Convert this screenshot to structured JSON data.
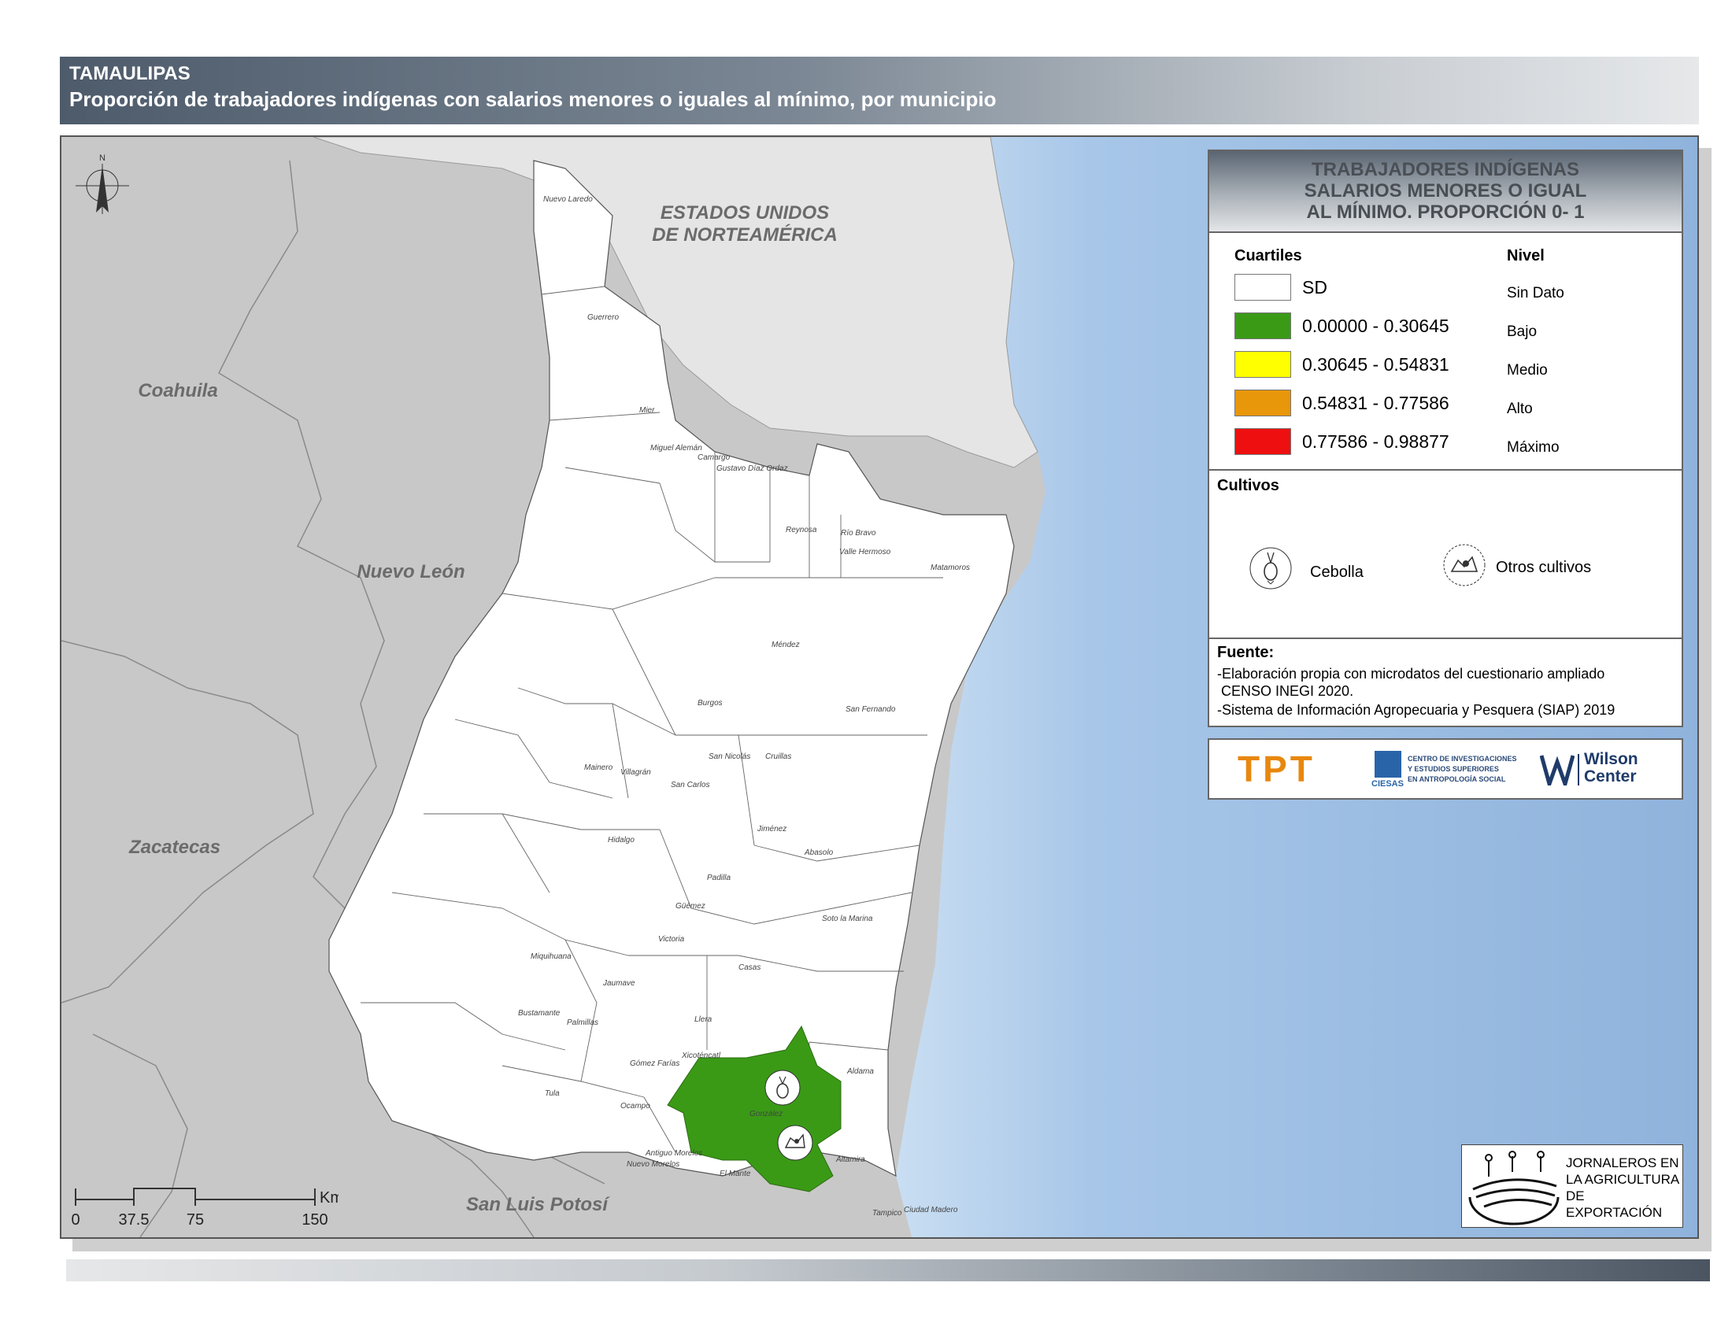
{
  "header": {
    "state": "TAMAULIPAS",
    "subtitle": "Proporción de trabajadores indígenas con salarios menores o iguales al mínimo, por municipio"
  },
  "map": {
    "regions": {
      "usa": "ESTADOS UNIDOS\nDE NORTEAMÉRICA",
      "usa_line1": "ESTADOS UNIDOS",
      "usa_line2": "DE NORTEAMÉRICA",
      "coahuila": "Coahuila",
      "nuevo_leon": "Nuevo León",
      "zacatecas": "Zacatecas",
      "san_luis_potosi": "San Luis Potosí"
    },
    "municipalities": [
      "Nuevo Laredo",
      "Guerrero",
      "Mier",
      "Miguel Alemán",
      "Camargo",
      "Gustavo Díaz Ordaz",
      "Reynosa",
      "Río Bravo",
      "Valle Hermoso",
      "Matamoros",
      "Méndez",
      "San Fernando",
      "Burgos",
      "Mainero",
      "Villagrán",
      "San Nicolás",
      "Cruillas",
      "San Carlos",
      "Hidalgo",
      "Jiménez",
      "Padilla",
      "Abasolo",
      "Güémez",
      "Soto la Marina",
      "Victoria",
      "Miquihuana",
      "Casas",
      "Jaumave",
      "Bustamante",
      "Palmillas",
      "Llera",
      "Xicoténcatl",
      "Gómez Farías",
      "Tula",
      "Ocampo",
      "Aldama",
      "González",
      "Antiguo Morelos",
      "Nuevo Morelos",
      "El Mante",
      "Altamira",
      "Tampico",
      "Ciudad Madero"
    ],
    "highlighted_municipality": "González",
    "highlight_color": "#3a9a16",
    "north_label": "N",
    "scale": {
      "ticks": [
        "0",
        "37.5",
        "75",
        "150"
      ],
      "unit": "Km"
    }
  },
  "legend": {
    "title_lines": [
      "TRABAJADORES INDÍGENAS",
      "SALARIOS MENORES O IGUAL",
      "AL MÍNIMO. PROPORCIÓN 0- 1"
    ],
    "col_cuartiles": "Cuartiles",
    "col_nivel": "Nivel",
    "classes": [
      {
        "range": "SD",
        "nivel": "Sin Dato",
        "color": "#ffffff"
      },
      {
        "range": "0.00000 - 0.30645",
        "nivel": "Bajo",
        "color": "#3a9a16"
      },
      {
        "range": "0.30645 - 0.54831",
        "nivel": "Medio",
        "color": "#ffff00"
      },
      {
        "range": "0.54831 - 0.77586",
        "nivel": "Alto",
        "color": "#e8960a"
      },
      {
        "range": "0.77586 - 0.98877",
        "nivel": "Máximo",
        "color": "#ee1010"
      }
    ],
    "cultivos_title": "Cultivos",
    "cultivos": [
      {
        "label": "Cebolla",
        "icon": "onion-icon"
      },
      {
        "label": "Otros cultivos",
        "icon": "other-crops-icon"
      }
    ],
    "fuente_title": "Fuente:",
    "fuente_lines": [
      "-Elaboración propia con microdatos del cuestionario ampliado",
      " CENSO INEGI 2020.",
      "-Sistema de Información Agropecuaria y Pesquera (SIAP) 2019"
    ]
  },
  "logos": {
    "tpt": "TPT",
    "ciesas_lines": [
      "CENTRO DE INVESTIGACIONES",
      "Y ESTUDIOS SUPERIORES",
      "EN ANTROPOLOGÍA SOCIAL"
    ],
    "ciesas_name": "CIESAS",
    "wilson_line1": "Wilson",
    "wilson_line2": "Center",
    "jornaleros_lines": [
      "JORNALEROS EN",
      "LA AGRICULTURA",
      "DE EXPORTACIÓN"
    ]
  },
  "colors": {
    "sea": "#a9c9ea",
    "land_neighbor": "#c8c8c8",
    "usa": "#e5e5e5",
    "municipality": "#ffffff"
  }
}
